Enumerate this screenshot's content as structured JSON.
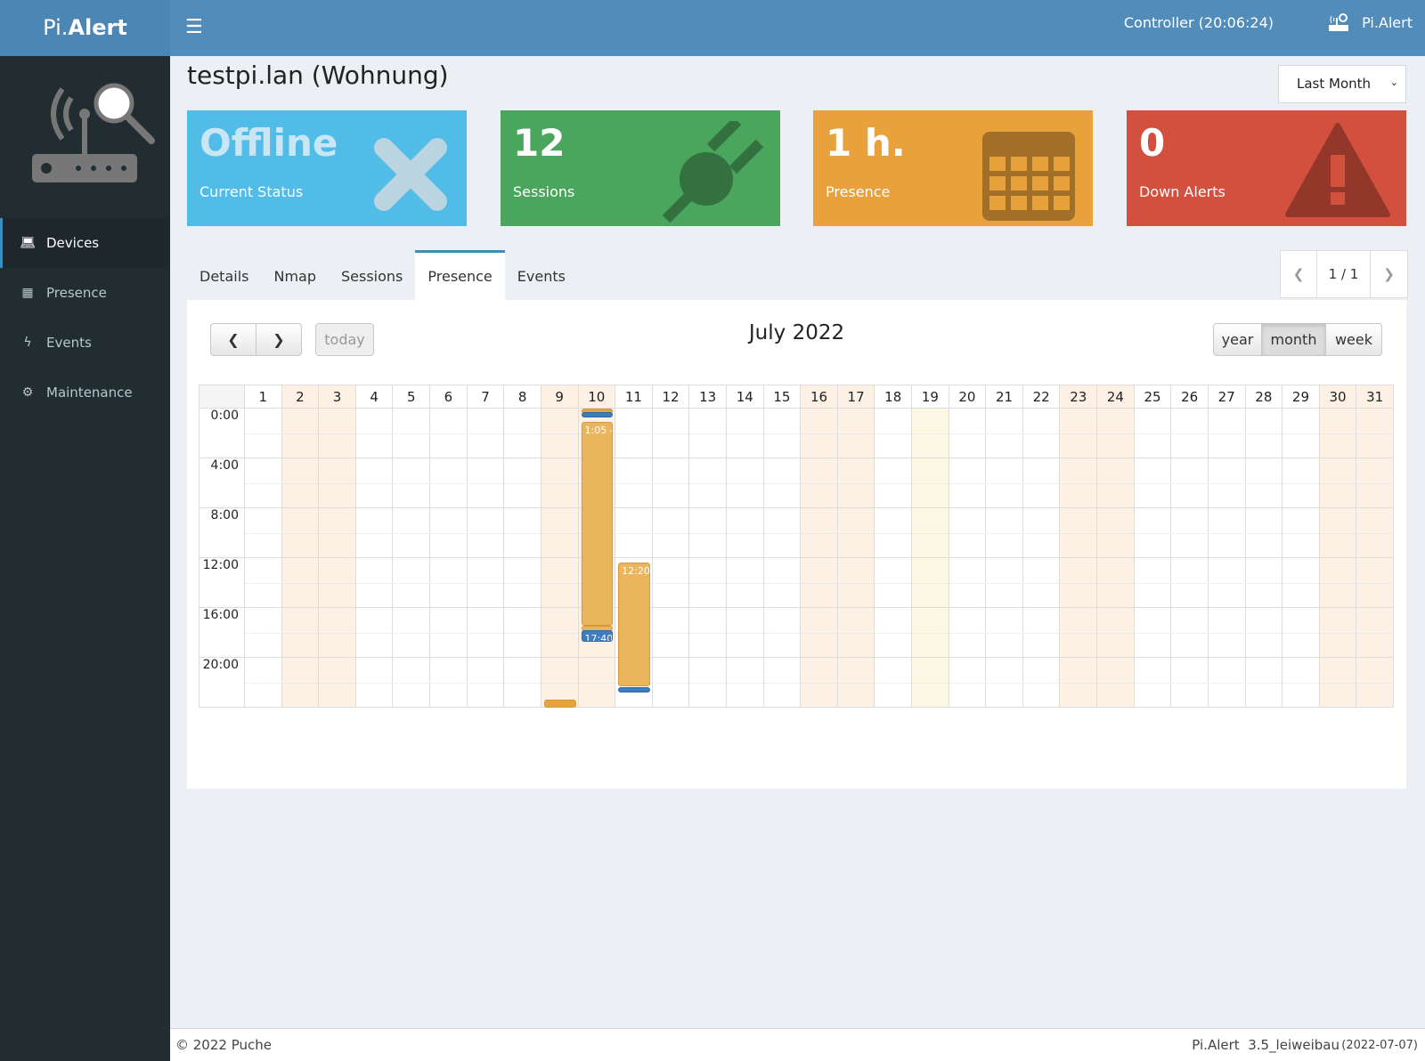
{
  "header": {
    "logo_prefix": "Pi.",
    "logo_suffix": "Alert",
    "controller": "Controller (20:06:24)",
    "user": "Pi.Alert",
    "menu_icon": "hamburger-icon"
  },
  "sidebar": {
    "items": [
      {
        "label": "Devices",
        "icon": "laptop-icon",
        "active": true
      },
      {
        "label": "Presence",
        "icon": "calendar-icon"
      },
      {
        "label": "Events",
        "icon": "bolt-icon"
      },
      {
        "label": "Maintenance",
        "icon": "gear-icon"
      }
    ]
  },
  "page": {
    "title": "testpi.lan (Wohnung)",
    "period": "Last Month"
  },
  "stats": [
    {
      "value": "Offline",
      "label": "Current Status",
      "color": "#52bce9",
      "icon": "x-icon"
    },
    {
      "value": "12",
      "label": "Sessions",
      "color": "#4aa55d",
      "icon": "plug-icon"
    },
    {
      "value": "1 h.",
      "label": "Presence",
      "color": "#e9a23b",
      "icon": "calendar-icon"
    },
    {
      "value": "0",
      "label": "Down Alerts",
      "color": "#d4503e",
      "icon": "warning-icon"
    }
  ],
  "tabs": [
    "Details",
    "Nmap",
    "Sessions",
    "Presence",
    "Events"
  ],
  "active_tab": "Presence",
  "pager": "1 / 1",
  "calendar": {
    "title": "July 2022",
    "today": "today",
    "views": [
      "year",
      "month",
      "week"
    ],
    "active_view": "month",
    "days": [
      1,
      2,
      3,
      4,
      5,
      6,
      7,
      8,
      9,
      10,
      11,
      12,
      13,
      14,
      15,
      16,
      17,
      18,
      19,
      20,
      21,
      22,
      23,
      24,
      25,
      26,
      27,
      28,
      29,
      30,
      31
    ],
    "weekend_days": [
      2,
      3,
      9,
      10,
      16,
      17,
      23,
      24,
      30,
      31
    ],
    "highlight_day": 19,
    "time_labels": [
      "0:00",
      "4:00",
      "8:00",
      "12:00",
      "16:00",
      "20:00"
    ],
    "events": [
      {
        "day": 9,
        "start": 23.33,
        "end": 24,
        "color": "#e9a23b",
        "label": ""
      },
      {
        "day": 10,
        "start": 0,
        "end": 0.25,
        "color": "#e9a23b",
        "label": ""
      },
      {
        "day": 10,
        "start": 0.25,
        "end": 0.4,
        "color": "#3c7dbf",
        "label": ""
      },
      {
        "day": 10,
        "start": 1.08,
        "end": 17.4,
        "color": "#ebb55c",
        "label": "1:05 -"
      },
      {
        "day": 10,
        "start": 17.45,
        "end": 17.7,
        "color": "#ebb55c",
        "label": ""
      },
      {
        "day": 10,
        "start": 17.8,
        "end": 18.7,
        "color": "#3c7dbf",
        "label": "17:40"
      },
      {
        "day": 11,
        "start": 12.33,
        "end": 22.3,
        "color": "#ebb55c",
        "label": "12:20 -"
      },
      {
        "day": 11,
        "start": 22.35,
        "end": 22.55,
        "color": "#3c7dbf",
        "label": ""
      }
    ]
  },
  "footer": {
    "copyright": "© 2022 Puche",
    "version": "Pi.Alert  3.5_leiweibau",
    "date": "(2022-07-07)"
  }
}
